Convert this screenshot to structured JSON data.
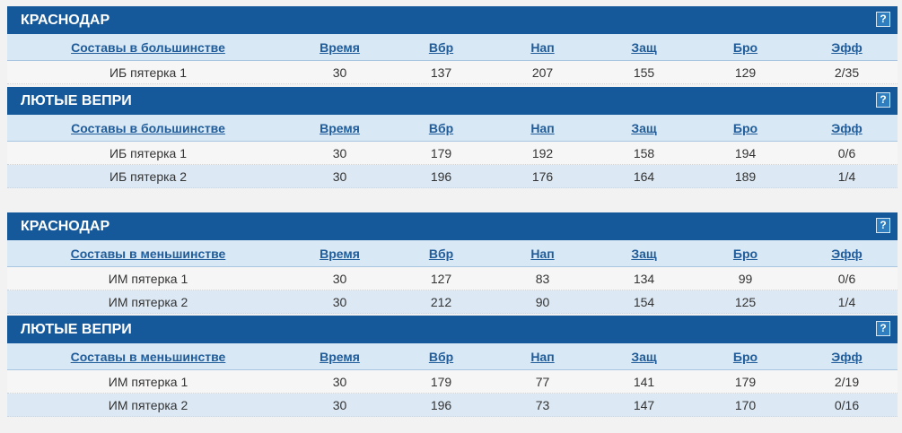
{
  "tables": [
    {
      "title": "КРАСНОДАР",
      "columns": [
        "Составы в большинстве",
        "Время",
        "Вбр",
        "Нап",
        "Защ",
        "Бро",
        "Эфф"
      ],
      "rows": [
        [
          "ИБ пятерка 1",
          30,
          137,
          207,
          155,
          129,
          "2/35"
        ]
      ]
    },
    {
      "title": "ЛЮТЫЕ ВЕПРИ",
      "columns": [
        "Составы в большинстве",
        "Время",
        "Вбр",
        "Нап",
        "Защ",
        "Бро",
        "Эфф"
      ],
      "rows": [
        [
          "ИБ пятерка 1",
          30,
          179,
          192,
          158,
          194,
          "0/6"
        ],
        [
          "ИБ пятерка 2",
          30,
          196,
          176,
          164,
          189,
          "1/4"
        ]
      ]
    },
    {
      "title": "КРАСНОДАР",
      "columns": [
        "Составы в меньшинстве",
        "Время",
        "Вбр",
        "Нап",
        "Защ",
        "Бро",
        "Эфф"
      ],
      "rows": [
        [
          "ИМ пятерка 1",
          30,
          127,
          83,
          134,
          99,
          "0/6"
        ],
        [
          "ИМ пятерка 2",
          30,
          212,
          90,
          154,
          125,
          "1/4"
        ]
      ]
    },
    {
      "title": "ЛЮТЫЕ ВЕПРИ",
      "columns": [
        "Составы в меньшинстве",
        "Время",
        "Вбр",
        "Нап",
        "Защ",
        "Бро",
        "Эфф"
      ],
      "rows": [
        [
          "ИМ пятерка 1",
          30,
          179,
          77,
          141,
          179,
          "2/19"
        ],
        [
          "ИМ пятерка 2",
          30,
          196,
          73,
          147,
          170,
          "0/16"
        ]
      ]
    }
  ]
}
